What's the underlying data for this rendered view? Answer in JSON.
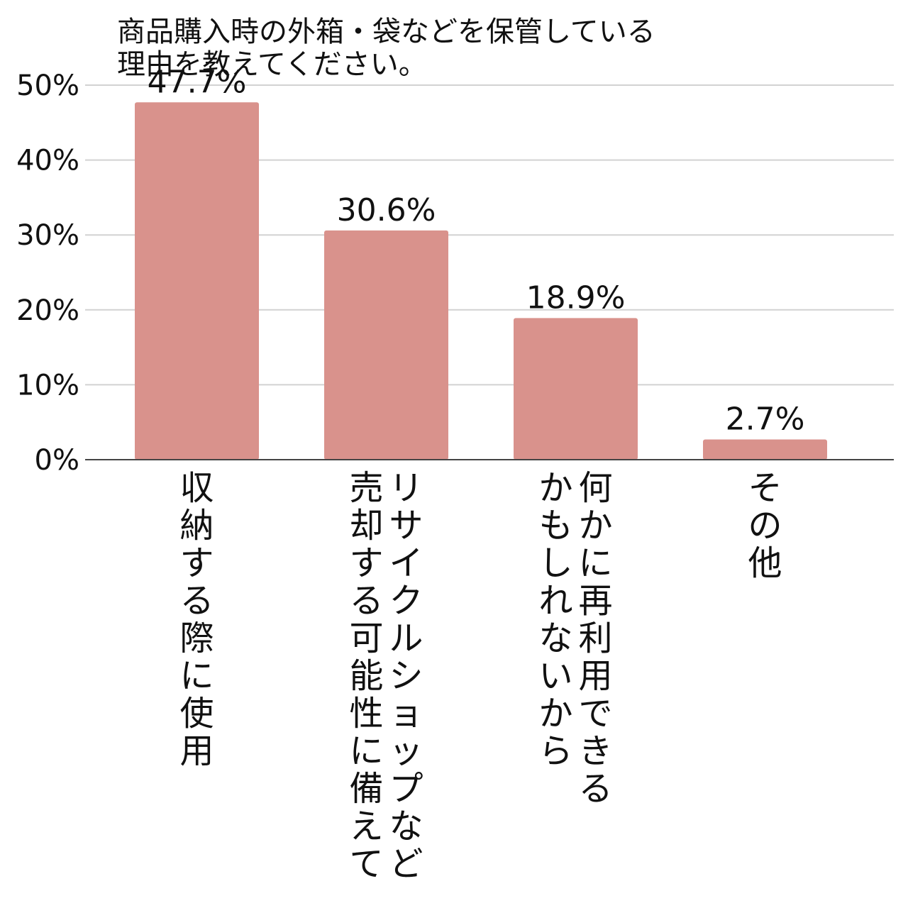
{
  "chart_data": {
    "type": "bar",
    "title_lines": [
      "商品購入時の外箱・袋などを保管している",
      "理由を教えてください。"
    ],
    "categories": [
      "収納する際に使用",
      "リサイクルショップなど売却する可能性に備えて",
      "何かに再利用できるかもしれないから",
      "その他"
    ],
    "category_label_columns": [
      [
        "収納する際に使用"
      ],
      [
        "リサイクルショップなど",
        "売却する可能性に備えて"
      ],
      [
        "何かに再利用できる",
        "かもしれないから"
      ],
      [
        "その他"
      ]
    ],
    "values": [
      47.7,
      30.6,
      18.9,
      2.7
    ],
    "data_labels": [
      "47.7%",
      "30.6%",
      "18.9%",
      "2.7%"
    ],
    "y_ticks": [
      0,
      10,
      20,
      30,
      40,
      50
    ],
    "y_tick_labels": [
      "0%",
      "10%",
      "20%",
      "30%",
      "40%",
      "50%"
    ],
    "ylim": [
      0,
      50
    ],
    "grid": true,
    "legend": "none",
    "colors": {
      "bar": "#d9928c",
      "grid": "#d2d2d2",
      "baseline": "#444444",
      "text": "#111111"
    }
  }
}
